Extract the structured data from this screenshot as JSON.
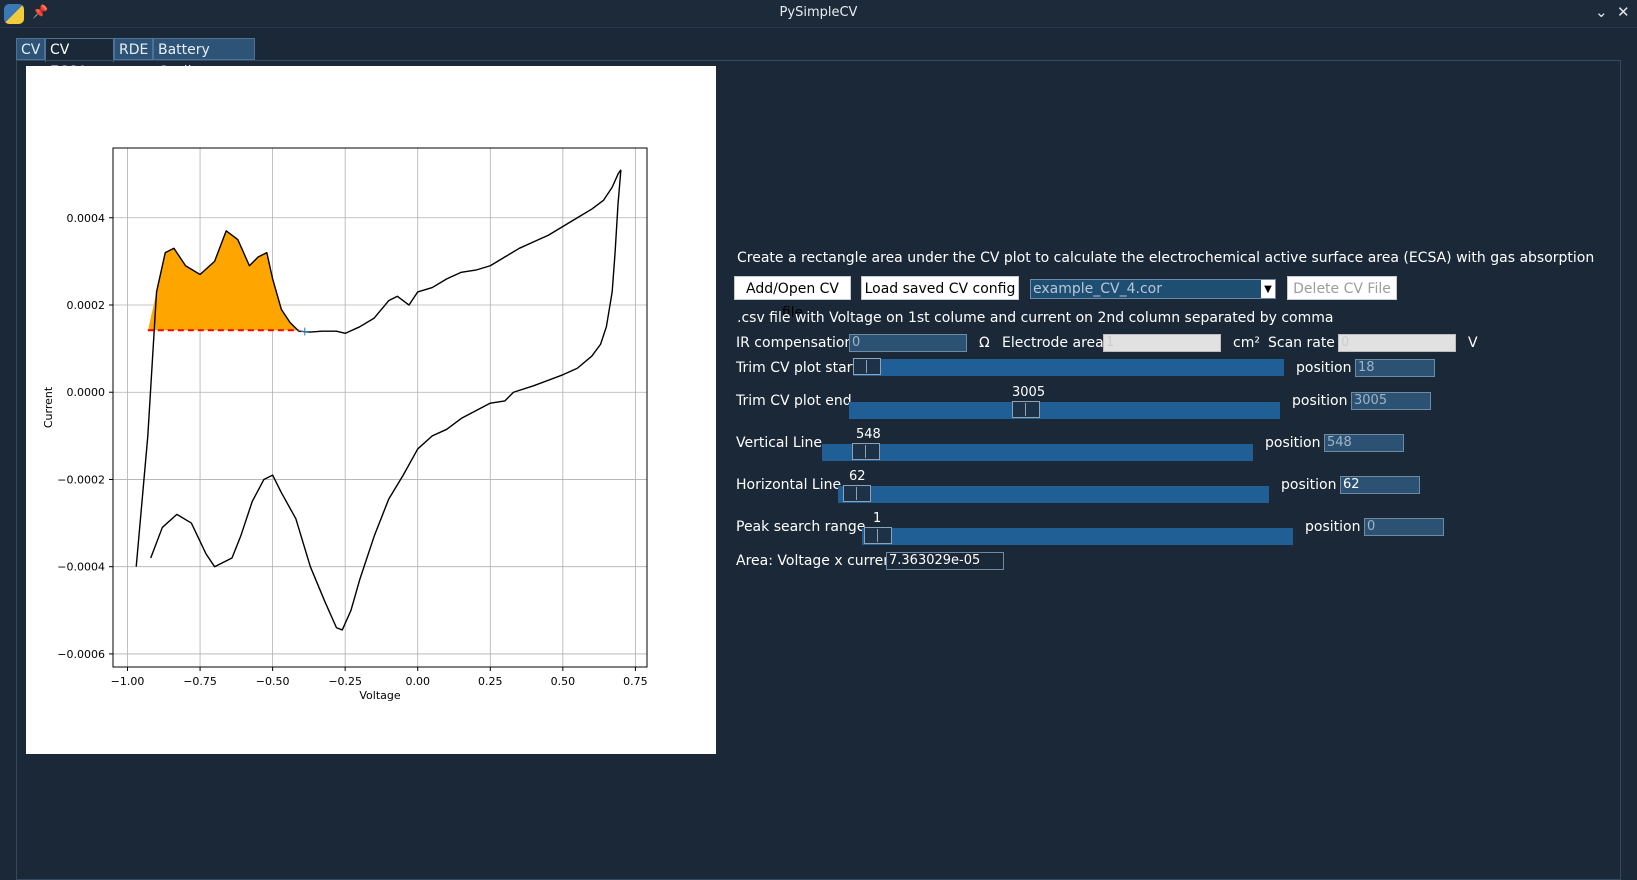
{
  "window": {
    "title": "PySimpleCV"
  },
  "tabs": [
    {
      "label": "CV"
    },
    {
      "label": "CV ECSA"
    },
    {
      "label": "RDE"
    },
    {
      "label": "Battery Cycling"
    }
  ],
  "controls": {
    "instruction": "Create a rectangle area under the CV plot to calculate the electrochemical active surface area (ECSA) with gas absorption",
    "add_open_label": "Add/Open CV file",
    "load_config_label": "Load saved CV config",
    "file_combo_value": "example_CV_4.cor",
    "delete_label": "Delete CV File",
    "csv_hint": ".csv file with Voltage on 1st colume and current on 2nd column separated by comma",
    "ir_label": "IR compensation",
    "ir_value": "0",
    "ohm_unit": "Ω",
    "electrode_label": "Electrode area",
    "electrode_value": "1",
    "cm2_unit": "cm²",
    "scan_rate_label": "Scan rate",
    "scan_rate_value": "0",
    "volt_unit": "V",
    "trim_start_label": "Trim CV plot start",
    "trim_start_position": "18",
    "trim_end_label": "Trim CV plot end",
    "trim_end_slider": "3005",
    "trim_end_position": "3005",
    "vline_label": "Vertical Line",
    "vline_slider": "548",
    "vline_position": "548",
    "hline_label": "Horizontal Line",
    "hline_slider": "62",
    "hline_position": "62",
    "peak_label": "Peak search range",
    "peak_slider": "1",
    "peak_position": "0",
    "position_label": "position",
    "area_label": "Area: Voltage x current",
    "area_value": "7.363029e-05"
  },
  "colors": {
    "fill": "#ffa500",
    "baseline": "#ff0000",
    "trace": "#000000",
    "slider": "#1f5f95"
  },
  "chart_data": {
    "type": "line",
    "title": "",
    "xlabel": "Voltage",
    "ylabel": "Current",
    "xlim": [
      -1.05,
      0.79
    ],
    "ylim": [
      -0.00063,
      0.00056
    ],
    "xticks": [
      -1.0,
      -0.75,
      -0.5,
      -0.25,
      0.0,
      0.25,
      0.5,
      0.75
    ],
    "xtick_labels": [
      "−1.00",
      "−0.75",
      "−0.50",
      "−0.25",
      "0.00",
      "0.25",
      "0.50",
      "0.75"
    ],
    "yticks": [
      0.0004,
      0.0002,
      0.0,
      -0.0002,
      -0.0004,
      -0.0006
    ],
    "ytick_labels": [
      "0.0004",
      "0.0002",
      "0.0000",
      "−0.0002",
      "−0.0004",
      "−0.0006"
    ],
    "grid": true,
    "series": [
      {
        "x": [
          -0.97,
          -0.95,
          -0.93,
          -0.9,
          -0.87,
          -0.84,
          -0.8,
          -0.75,
          -0.7,
          -0.66,
          -0.62,
          -0.58,
          -0.55,
          -0.52,
          -0.5,
          -0.47,
          -0.44,
          -0.41,
          -0.37,
          -0.33,
          -0.28,
          -0.25,
          -0.2,
          -0.15,
          -0.1,
          -0.07,
          -0.03,
          0.0,
          0.05,
          0.1,
          0.15,
          0.2,
          0.25,
          0.3,
          0.35,
          0.4,
          0.45,
          0.5,
          0.55,
          0.6,
          0.64,
          0.67,
          0.69,
          0.7
        ],
        "y": [
          -0.0004,
          -0.00025,
          -0.0001,
          0.00023,
          0.00032,
          0.00033,
          0.00029,
          0.00027,
          0.0003,
          0.00037,
          0.00035,
          0.00029,
          0.00031,
          0.00032,
          0.00026,
          0.00019,
          0.00016,
          0.00014,
          0.000138,
          0.00014,
          0.00014,
          0.000135,
          0.00015,
          0.00017,
          0.00021,
          0.00022,
          0.0002,
          0.00023,
          0.00024,
          0.00026,
          0.000275,
          0.00028,
          0.00029,
          0.00031,
          0.00033,
          0.000345,
          0.00036,
          0.00038,
          0.0004,
          0.00042,
          0.00044,
          0.00047,
          0.0005,
          0.00051
        ]
      },
      {
        "x": [
          0.7,
          0.69,
          0.68,
          0.67,
          0.65,
          0.63,
          0.6,
          0.55,
          0.5,
          0.4,
          0.33,
          0.3,
          0.25,
          0.15,
          0.1,
          0.05,
          0.0,
          -0.05,
          -0.1,
          -0.15,
          -0.2,
          -0.23,
          -0.26,
          -0.28,
          -0.32,
          -0.37,
          -0.42,
          -0.47,
          -0.5,
          -0.53,
          -0.57,
          -0.61,
          -0.64,
          -0.67,
          -0.7,
          -0.73,
          -0.78,
          -0.83,
          -0.88,
          -0.92
        ],
        "y": [
          0.00051,
          0.00043,
          0.00032,
          0.00023,
          0.00015,
          0.00011,
          8.3e-05,
          5.5e-05,
          4e-05,
          1.5e-05,
          0.0,
          -2e-05,
          -2.5e-05,
          -6e-05,
          -8.5e-05,
          -0.0001,
          -0.00013,
          -0.00019,
          -0.000245,
          -0.00033,
          -0.00043,
          -0.0005,
          -0.000545,
          -0.00054,
          -0.00048,
          -0.0004,
          -0.00029,
          -0.00023,
          -0.00019,
          -0.0002,
          -0.00025,
          -0.00033,
          -0.00038,
          -0.00039,
          -0.0004,
          -0.00037,
          -0.0003,
          -0.00028,
          -0.00031,
          -0.00038
        ]
      }
    ],
    "fill_region": {
      "x": [
        -0.93,
        -0.9,
        -0.87,
        -0.84,
        -0.8,
        -0.75,
        -0.7,
        -0.66,
        -0.62,
        -0.58,
        -0.55,
        -0.52,
        -0.5,
        -0.47,
        -0.44,
        -0.41
      ],
      "y": [
        0.00014,
        0.00023,
        0.00032,
        0.00033,
        0.00029,
        0.00027,
        0.0003,
        0.00037,
        0.00035,
        0.00029,
        0.00031,
        0.00032,
        0.00026,
        0.00019,
        0.00016,
        0.00014
      ],
      "baseline": 0.000142
    }
  }
}
